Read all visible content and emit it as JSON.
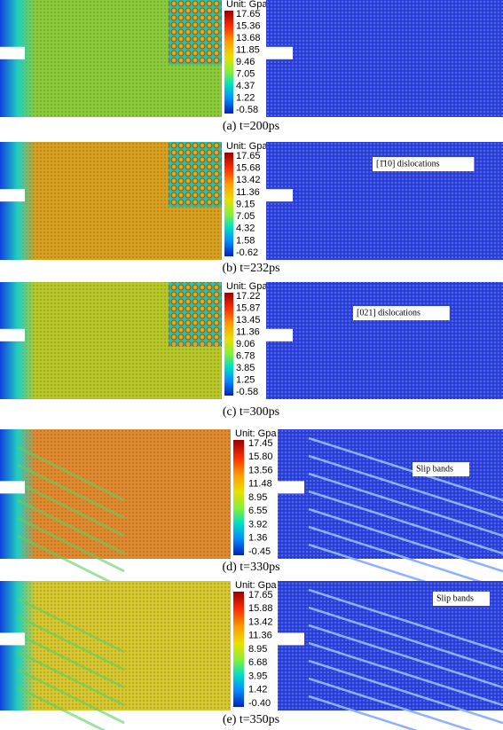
{
  "panels": [
    {
      "unit": "Unit: Gpa",
      "ticks": [
        "17.65",
        "15.36",
        "13.68",
        "11.85",
        "9.46",
        "7.05",
        "4.37",
        "1.22",
        "-0.58"
      ],
      "annotation": null,
      "caption": "(a)  t=200ps"
    },
    {
      "unit": "Unit: Gpa",
      "ticks": [
        "17.65",
        "15.68",
        "13.42",
        "11.36",
        "9.15",
        "7.05",
        "4.32",
        "1.58",
        "-0.62"
      ],
      "annotation": "[1̄10] dislocations",
      "caption": "(b)  t=232ps"
    },
    {
      "unit": "Unit: Gpa",
      "ticks": [
        "17.22",
        "15.87",
        "13.45",
        "11.36",
        "9.06",
        "6.78",
        "3.85",
        "1.25",
        "-0.58"
      ],
      "annotation": "[021] dislocations",
      "caption": "(c)  t=300ps"
    },
    {
      "unit": "Unit: Gpa",
      "ticks": [
        "17.45",
        "15.80",
        "13.56",
        "11.48",
        "8.95",
        "6.55",
        "3.92",
        "1.36",
        "-0.45"
      ],
      "annotation": "Slip bands",
      "caption": "(d)  t=330ps"
    },
    {
      "unit": "Unit: Gpa",
      "ticks": [
        "17.65",
        "15.88",
        "13.42",
        "11.36",
        "8.95",
        "6.68",
        "3.95",
        "1.42",
        "-0.40"
      ],
      "annotation": "Slip bands",
      "caption": "(e)  t=350ps"
    }
  ]
}
